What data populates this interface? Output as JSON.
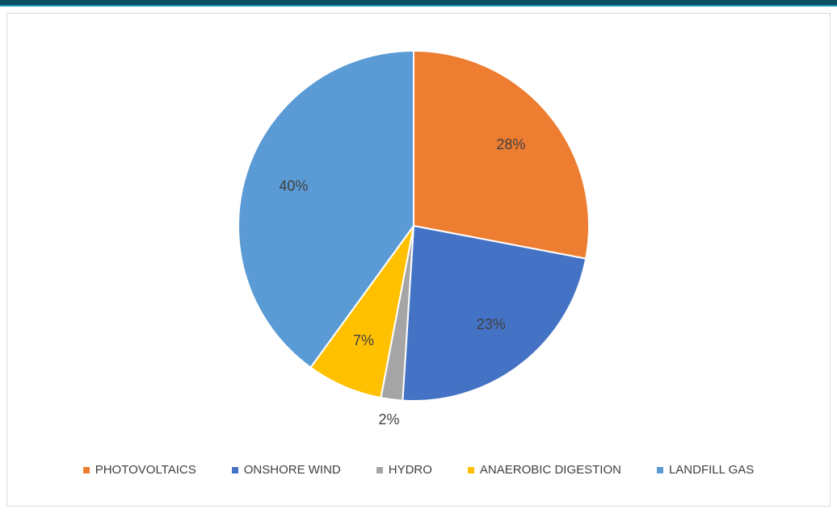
{
  "chart_data": {
    "type": "pie",
    "categories": [
      "PHOTOVOLTAICS",
      "ONSHORE WIND",
      "HYDRO",
      "ANAEROBIC DIGESTION",
      "LANDFILL GAS"
    ],
    "values": [
      28,
      23,
      2,
      7,
      40
    ],
    "labels": [
      "28%",
      "23%",
      "2%",
      "7%",
      "40%"
    ],
    "colors": [
      "#ED7D31",
      "#4472C4",
      "#A5A5A5",
      "#FFC000",
      "#5B9BD5"
    ],
    "legend_position": "bottom"
  }
}
